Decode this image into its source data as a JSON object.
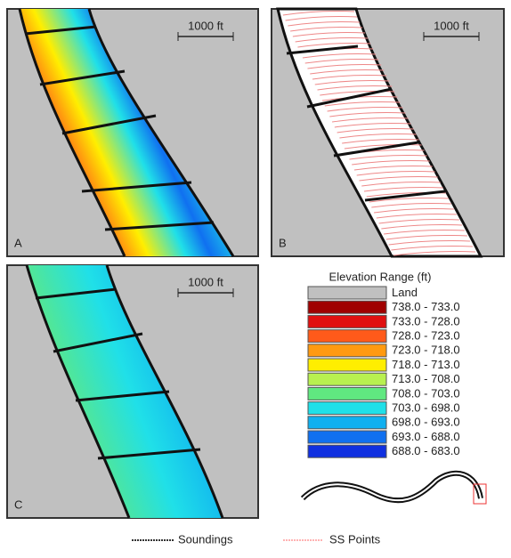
{
  "panels": [
    {
      "label": "A",
      "scale": "1000 ft"
    },
    {
      "label": "B",
      "scale": "1000 ft"
    },
    {
      "label": "C",
      "scale": "1000 ft"
    }
  ],
  "legend": {
    "title": "Elevation Range (ft)",
    "items": [
      {
        "label": "Land",
        "color": "#c0c0c0"
      },
      {
        "label": "738.0 - 733.0",
        "color": "#a00000"
      },
      {
        "label": "733.0 - 728.0",
        "color": "#e01010"
      },
      {
        "label": "728.0 - 723.0",
        "color": "#ff5a1a"
      },
      {
        "label": "723.0 - 718.0",
        "color": "#ff9a10"
      },
      {
        "label": "718.0 - 713.0",
        "color": "#ffee00"
      },
      {
        "label": "713.0 - 708.0",
        "color": "#b8f050"
      },
      {
        "label": "708.0 - 703.0",
        "color": "#60e880"
      },
      {
        "label": "703.0 - 698.0",
        "color": "#20e0e8"
      },
      {
        "label": "698.0 - 693.0",
        "color": "#10b0f0"
      },
      {
        "label": "693.0 - 688.0",
        "color": "#1070f0"
      },
      {
        "label": "688.0 - 683.0",
        "color": "#1030e0"
      }
    ]
  },
  "key": {
    "soundings": "Soundings",
    "ss_points": "SS Points"
  }
}
